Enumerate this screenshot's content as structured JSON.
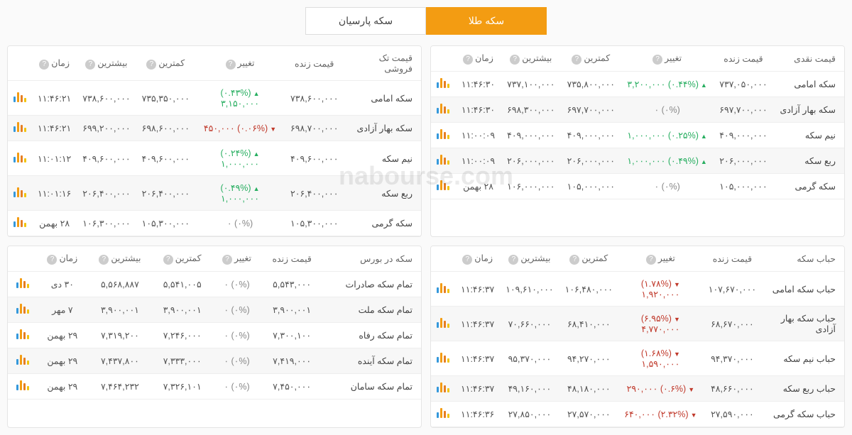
{
  "tabs": {
    "active": "سکه طلا",
    "inactive": "سکه پارسیان"
  },
  "watermark": "nabourse.com",
  "tables": {
    "cash": {
      "headers": [
        "قیمت نقدی",
        "قیمت زنده",
        "تغییر",
        "کمترین",
        "بیشترین",
        "زمان",
        ""
      ],
      "rows": [
        {
          "name": "سکه امامی",
          "live": "۷۳۷,۰۵۰,۰۰۰",
          "change": "(۰.۴۴%) ۳,۲۰۰,۰۰۰",
          "dir": "up",
          "low": "۷۳۵,۸۰۰,۰۰۰",
          "high": "۷۳۷,۱۰۰,۰۰۰",
          "time": "۱۱:۴۶:۳۰"
        },
        {
          "name": "سکه بهار آزادی",
          "live": "۶۹۷,۷۰۰,۰۰۰",
          "change": "(۰%) ۰",
          "dir": "neutral",
          "low": "۶۹۷,۷۰۰,۰۰۰",
          "high": "۶۹۸,۳۰۰,۰۰۰",
          "time": "۱۱:۴۶:۳۰"
        },
        {
          "name": "نیم سکه",
          "live": "۴۰۹,۰۰۰,۰۰۰",
          "change": "(۰.۲۵%) ۱,۰۰۰,۰۰۰",
          "dir": "up",
          "low": "۴۰۹,۰۰۰,۰۰۰",
          "high": "۴۰۹,۰۰۰,۰۰۰",
          "time": "۱۱:۰۰:۰۹"
        },
        {
          "name": "ربع سکه",
          "live": "۲۰۶,۰۰۰,۰۰۰",
          "change": "(۰.۴۹%) ۱,۰۰۰,۰۰۰",
          "dir": "up",
          "low": "۲۰۶,۰۰۰,۰۰۰",
          "high": "۲۰۶,۰۰۰,۰۰۰",
          "time": "۱۱:۰۰:۰۹"
        },
        {
          "name": "سکه گرمی",
          "live": "۱۰۵,۰۰۰,۰۰۰",
          "change": "(۰%) ۰",
          "dir": "neutral",
          "low": "۱۰۵,۰۰۰,۰۰۰",
          "high": "۱۰۶,۰۰۰,۰۰۰",
          "time": "۲۸ بهمن"
        }
      ]
    },
    "retail": {
      "headers": [
        "قیمت تک فروشی",
        "قیمت زنده",
        "تغییر",
        "کمترین",
        "بیشترین",
        "زمان",
        ""
      ],
      "rows": [
        {
          "name": "سکه امامی",
          "live": "۷۳۸,۶۰۰,۰۰۰",
          "change": "(۰.۴۳%) ۳,۱۵۰,۰۰۰",
          "dir": "up",
          "low": "۷۳۵,۳۵۰,۰۰۰",
          "high": "۷۳۸,۶۰۰,۰۰۰",
          "time": "۱۱:۴۶:۲۱"
        },
        {
          "name": "سکه بهار آزادی",
          "live": "۶۹۸,۷۰۰,۰۰۰",
          "change": "(۰.۰۶%) ۴۵۰,۰۰۰",
          "dir": "down",
          "low": "۶۹۸,۶۰۰,۰۰۰",
          "high": "۶۹۹,۲۰۰,۰۰۰",
          "time": "۱۱:۴۶:۲۱"
        },
        {
          "name": "نیم سکه",
          "live": "۴۰۹,۶۰۰,۰۰۰",
          "change": "(۰.۲۴%) ۱,۰۰۰,۰۰۰",
          "dir": "up",
          "low": "۴۰۹,۶۰۰,۰۰۰",
          "high": "۴۰۹,۶۰۰,۰۰۰",
          "time": "۱۱:۰۱:۱۲"
        },
        {
          "name": "ربع سکه",
          "live": "۲۰۶,۴۰۰,۰۰۰",
          "change": "(۰.۴۹%) ۱,۰۰۰,۰۰۰",
          "dir": "up",
          "low": "۲۰۶,۴۰۰,۰۰۰",
          "high": "۲۰۶,۴۰۰,۰۰۰",
          "time": "۱۱:۰۱:۱۶"
        },
        {
          "name": "سکه گرمی",
          "live": "۱۰۵,۳۰۰,۰۰۰",
          "change": "(۰%) ۰",
          "dir": "neutral",
          "low": "۱۰۵,۳۰۰,۰۰۰",
          "high": "۱۰۶,۳۰۰,۰۰۰",
          "time": "۲۸ بهمن"
        }
      ]
    },
    "bubble": {
      "headers": [
        "حباب سکه",
        "قیمت زنده",
        "تغییر",
        "کمترین",
        "بیشترین",
        "زمان",
        ""
      ],
      "rows": [
        {
          "name": "حباب سکه امامی",
          "live": "۱۰۷,۶۷۰,۰۰۰",
          "change": "(۱.۷۸%) ۱,۹۲۰,۰۰۰",
          "dir": "down",
          "low": "۱۰۶,۴۸۰,۰۰۰",
          "high": "۱۰۹,۶۱۰,۰۰۰",
          "time": "۱۱:۴۶:۳۷"
        },
        {
          "name": "حباب سکه بهار آزادی",
          "live": "۶۸,۶۷۰,۰۰۰",
          "change": "(۶.۹۵%) ۴,۷۷۰,۰۰۰",
          "dir": "down",
          "low": "۶۸,۴۱۰,۰۰۰",
          "high": "۷۰,۶۶۰,۰۰۰",
          "time": "۱۱:۴۶:۳۷"
        },
        {
          "name": "حباب نیم سکه",
          "live": "۹۴,۳۷۰,۰۰۰",
          "change": "(۱.۶۸%) ۱,۵۹۰,۰۰۰",
          "dir": "down",
          "low": "۹۴,۲۷۰,۰۰۰",
          "high": "۹۵,۳۷۰,۰۰۰",
          "time": "۱۱:۴۶:۳۷"
        },
        {
          "name": "حباب ربع سکه",
          "live": "۴۸,۶۶۰,۰۰۰",
          "change": "(۰.۶%) ۲۹۰,۰۰۰",
          "dir": "down",
          "low": "۴۸,۱۸۰,۰۰۰",
          "high": "۴۹,۱۶۰,۰۰۰",
          "time": "۱۱:۴۶:۳۷"
        },
        {
          "name": "حباب سکه گرمی",
          "live": "۲۷,۵۹۰,۰۰۰",
          "change": "(۲.۳۲%) ۶۴۰,۰۰۰",
          "dir": "down",
          "low": "۲۷,۵۷۰,۰۰۰",
          "high": "۲۷,۸۵۰,۰۰۰",
          "time": "۱۱:۴۶:۳۶"
        }
      ]
    },
    "bourse": {
      "headers": [
        "سکه در بورس",
        "قیمت زنده",
        "تغییر",
        "کمترین",
        "بیشترین",
        "زمان",
        ""
      ],
      "rows": [
        {
          "name": "تمام سکه صادرات",
          "live": "۵,۵۴۳,۰۰۰",
          "change": "(۰%) ۰",
          "dir": "neutral",
          "low": "۵,۵۴۱,۰۰۵",
          "high": "۵,۵۶۸,۸۸۷",
          "time": "۳۰ دی"
        },
        {
          "name": "تمام سکه ملت",
          "live": "۳,۹۰۰,۰۰۱",
          "change": "(۰%) ۰",
          "dir": "neutral",
          "low": "۳,۹۰۰,۰۰۱",
          "high": "۳,۹۰۰,۰۰۱",
          "time": "۷ مهر"
        },
        {
          "name": "تمام سکه رفاه",
          "live": "۷,۳۰۰,۱۰۰",
          "change": "(۰%) ۰",
          "dir": "neutral",
          "low": "۷,۲۴۶,۰۰۰",
          "high": "۷,۳۱۹,۲۰۰",
          "time": "۲۹ بهمن"
        },
        {
          "name": "تمام سکه آینده",
          "live": "۷,۴۱۹,۰۰۰",
          "change": "(۰%) ۰",
          "dir": "neutral",
          "low": "۷,۳۳۳,۰۰۰",
          "high": "۷,۴۳۷,۸۰۰",
          "time": "۲۹ بهمن"
        },
        {
          "name": "تمام سکه سامان",
          "live": "۷,۴۵۰,۰۰۰",
          "change": "(۰%) ۰",
          "dir": "neutral",
          "low": "۷,۳۲۶,۱۰۱",
          "high": "۷,۴۶۴,۲۳۲",
          "time": "۲۹ بهمن"
        }
      ]
    }
  },
  "help_cols": [
    2,
    3,
    4,
    5
  ]
}
